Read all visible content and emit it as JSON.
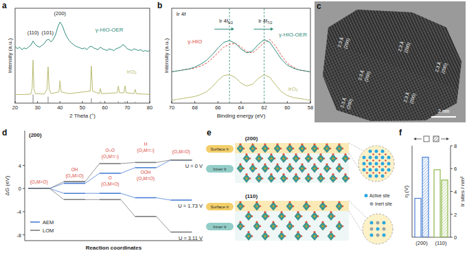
{
  "chart_data": [
    {
      "panel": "a",
      "type": "line",
      "xlabel": "2 Theta (°)",
      "ylabel": "Intensity (a.u.)",
      "xlim": [
        20,
        80
      ],
      "xticks": [
        20,
        30,
        40,
        50,
        60,
        70,
        80
      ],
      "ylim": [
        0,
        11
      ],
      "tick_labels": "x",
      "annotations": [
        "(110)",
        "(101)",
        "(200)"
      ],
      "series": [
        {
          "name": "γ-HIO-OER",
          "color": "#2e8b7a",
          "x": [
            20,
            21,
            22,
            23,
            24,
            25,
            26,
            27,
            28,
            29,
            30,
            31,
            32,
            33,
            34,
            35,
            36,
            37,
            38,
            39,
            40,
            41,
            42,
            43,
            44,
            45,
            46,
            47,
            48,
            49,
            50,
            51,
            52,
            53,
            54,
            55,
            56,
            57,
            58,
            59,
            60,
            61,
            62,
            63,
            64,
            65,
            66,
            67,
            68,
            69,
            70,
            71,
            72,
            73,
            74,
            75,
            76,
            77,
            78,
            79,
            80
          ],
          "values": [
            6.6,
            6.3,
            6.5,
            6.2,
            6.4,
            6.3,
            6.5,
            6.7,
            7.2,
            6.8,
            6.6,
            6.5,
            6.7,
            6.9,
            7.3,
            7.4,
            7.1,
            7.4,
            7.9,
            8.8,
            9.4,
            9.0,
            8.3,
            7.7,
            7.3,
            7.0,
            6.8,
            6.6,
            6.5,
            6.4,
            6.3,
            6.4,
            6.2,
            6.5,
            6.6,
            6.4,
            6.3,
            6.2,
            6.5,
            6.3,
            6.2,
            6.1,
            6.3,
            6.2,
            6.1,
            6.3,
            6.4,
            6.5,
            6.8,
            6.6,
            6.3,
            6.2,
            6.1,
            6.3,
            6.2,
            6.1,
            6.2,
            6.0,
            6.1,
            6.0,
            6.1
          ]
        },
        {
          "name": "IrO₂",
          "color": "#b8ba6e",
          "x": [
            20,
            24,
            27,
            27.6,
            28,
            28.4,
            29,
            33,
            34.2,
            34.7,
            35.2,
            36,
            39.5,
            40,
            40.5,
            44,
            53.5,
            54,
            54.5,
            57.5,
            58,
            58.5,
            65.5,
            66,
            66.5,
            68.5,
            69,
            69.5,
            73,
            73.5,
            74,
            80
          ],
          "values": [
            1.0,
            1.0,
            1.05,
            1.7,
            5.0,
            1.7,
            1.1,
            1.05,
            1.6,
            4.2,
            1.6,
            1.1,
            1.3,
            2.6,
            1.3,
            1.1,
            1.4,
            4.3,
            1.4,
            1.1,
            1.7,
            1.1,
            1.2,
            2.0,
            1.2,
            1.2,
            2.0,
            1.2,
            1.1,
            1.6,
            1.1,
            1.0
          ]
        },
        {
          "type": "stem",
          "color": "#7f7f7f",
          "x": [
            28,
            34.7,
            40,
            54,
            58,
            66,
            69,
            73.5
          ],
          "values": [
            1.0,
            0.75,
            0.2,
            0.55,
            0.2,
            0.2,
            0.2,
            0.15
          ]
        }
      ]
    },
    {
      "panel": "b",
      "type": "line",
      "title": "Ir 4f",
      "xlabel": "Binding energy (eV)",
      "ylabel": "Intensity (a.u.)",
      "xlim": [
        70,
        58
      ],
      "xticks": [
        70,
        68,
        66,
        64,
        62,
        60,
        58
      ],
      "ylim": [
        0,
        10
      ],
      "tick_labels": "x",
      "annotations": [
        "Ir 4f5/2",
        "Ir 4f7/2"
      ],
      "reference_lines": [
        65,
        62
      ],
      "x": [
        70,
        69.5,
        69,
        68.5,
        68,
        67.5,
        67,
        66.5,
        66,
        65.5,
        65,
        64.5,
        64,
        63.5,
        63,
        62.5,
        62,
        61.5,
        61,
        60.5,
        60,
        59.5,
        59,
        58.5,
        58
      ],
      "series": [
        {
          "name": "γ-HIO",
          "color": "#e0483e",
          "line_style": "dashed",
          "values": [
            3.3,
            3.4,
            3.5,
            3.6,
            3.7,
            3.9,
            4.2,
            4.7,
            5.3,
            5.9,
            6.2,
            6.3,
            5.9,
            5.4,
            5.3,
            5.8,
            6.4,
            6.7,
            6.0,
            5.0,
            4.2,
            3.8,
            3.5,
            3.4,
            3.3
          ]
        },
        {
          "name": "γ-HIO-OER",
          "color": "#2e8b7a",
          "line_style": "solid",
          "values": [
            3.3,
            3.4,
            3.5,
            3.6,
            3.8,
            4.1,
            4.5,
            5.1,
            5.8,
            6.4,
            6.6,
            6.3,
            5.7,
            5.3,
            5.5,
            6.2,
            6.7,
            6.4,
            5.5,
            4.6,
            4.0,
            3.7,
            3.5,
            3.4,
            3.3
          ]
        },
        {
          "name": "IrO₂",
          "color": "#b8ba6e",
          "line_style": "solid",
          "values": [
            0.3,
            0.4,
            0.5,
            0.6,
            0.7,
            0.9,
            1.2,
            1.7,
            2.4,
            2.9,
            3.0,
            2.7,
            2.1,
            1.8,
            2.0,
            2.6,
            3.0,
            2.7,
            1.9,
            1.2,
            0.8,
            0.6,
            0.5,
            0.4,
            0.3
          ]
        }
      ]
    },
    {
      "panel": "c",
      "type": "image",
      "annotations": [
        {
          "spacing": "2.3 Å",
          "plane": "(200)"
        },
        {
          "spacing": "2.3 Å",
          "plane": "(200)"
        },
        {
          "spacing": "2.3 Å",
          "plane": "(200)"
        },
        {
          "spacing": "2.3 Å",
          "plane": "(200)"
        },
        {
          "spacing": "2.3 Å",
          "plane": "(200)"
        },
        {
          "spacing": "2.3 Å",
          "plane": "(200)"
        }
      ],
      "scale_bar": "2 nm"
    },
    {
      "panel": "d",
      "type": "step",
      "subtitle": "(200)",
      "xlabel": "Reaction coordinates",
      "ylabel": "ΔG (eV)",
      "x": [
        0,
        1,
        2,
        3,
        4
      ],
      "xlim": [
        -0.4,
        4.6
      ],
      "ylim": [
        -9,
        10
      ],
      "yticks": [
        -8,
        -4,
        0,
        4
      ],
      "tick_labels": "y",
      "legend": "lower left",
      "annotations": [
        "(O₂M=O)",
        "OH",
        "(O₂M=O)",
        "O–O",
        "(O₂M=□)",
        "H",
        "(O₂M=□)",
        "(O₂M=O)",
        "O",
        "(O₂M=O)",
        "OOH",
        "(O₂M=O)"
      ],
      "series": [
        {
          "name": "AEM",
          "color": "#4a7fd4",
          "label": "U = 0 V",
          "values": [
            0,
            0.9,
            2.63,
            3.6,
            4.92
          ]
        },
        {
          "name": "LOM",
          "color": "#7a7a7a",
          "values": [
            0,
            1.2,
            4.31,
            4.5,
            4.92
          ]
        },
        {
          "color": "#4a7fd4",
          "label": "U = 1.73 V",
          "values": [
            0,
            -0.83,
            -0.83,
            -1.59,
            -2.0
          ]
        },
        {
          "color": "#7a7a7a",
          "label": "U = 3.11 V",
          "values": [
            0,
            -1.91,
            -1.91,
            -4.83,
            -7.52
          ]
        }
      ]
    },
    {
      "panel": "e",
      "type": "diagram",
      "facets": [
        {
          "label": "(200)",
          "surface": "Surface Ir",
          "inner": "Inner Ir"
        },
        {
          "label": "(110)",
          "surface": "Surface Ir",
          "inner": "Inner Ir"
        }
      ],
      "sites": [
        "Active site",
        "Inert site"
      ]
    },
    {
      "panel": "f",
      "type": "bar",
      "categories": [
        "(200)",
        "(110)"
      ],
      "ylabel": "η (V)",
      "y2label": "Ir sites / nm²",
      "ylim": [
        0,
        0.8
      ],
      "y2lim": [
        0,
        8
      ],
      "y2ticks": [
        0,
        2,
        4,
        6,
        8
      ],
      "colors": [
        "#4a7fd4",
        "#8db84a"
      ],
      "series": [
        {
          "axis": "y",
          "values": [
            0.34,
            0.59
          ]
        },
        {
          "axis": "y2",
          "values": [
            7.0,
            5.0
          ]
        }
      ]
    }
  ]
}
